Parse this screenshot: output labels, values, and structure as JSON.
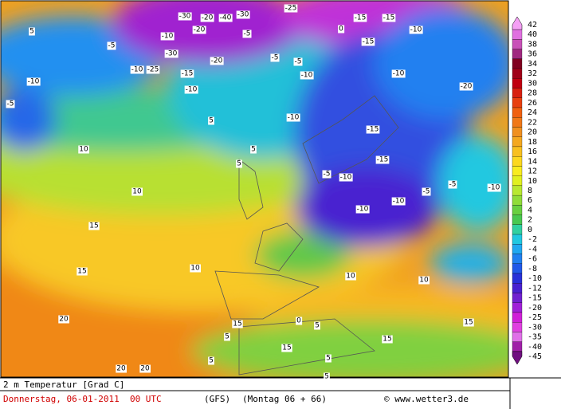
{
  "map_labels": [
    "-30",
    "-20",
    "-40",
    "-30",
    "-25",
    "-15",
    "-20",
    "-30",
    "-10",
    "-25",
    "-15",
    "-10",
    "-5",
    "-20",
    "-10",
    "-5",
    "-10",
    "-20",
    "-15",
    "-10",
    "-15",
    "-5",
    "0",
    "5",
    "-10",
    "-15",
    "-10",
    "-5",
    "-10",
    "-15",
    "-5",
    "-10",
    "-10",
    "-10",
    "-5",
    "5",
    "5",
    "10",
    "10",
    "15",
    "15",
    "15",
    "20",
    "20",
    "5",
    "10",
    "5",
    "15",
    "5",
    "0",
    "5",
    "15",
    "10",
    "5",
    "5",
    "10",
    "15",
    "-5",
    "-10",
    "-5",
    "20"
  ],
  "colorbar": {
    "levels": [
      42,
      40,
      38,
      36,
      34,
      32,
      30,
      28,
      26,
      24,
      22,
      20,
      18,
      16,
      14,
      12,
      10,
      8,
      6,
      4,
      2,
      0,
      -2,
      -4,
      -6,
      -8,
      -10,
      -12,
      -15,
      -20,
      -25,
      -30,
      -35,
      -40,
      -45
    ],
    "colors": [
      "#f4a0f4",
      "#e070e0",
      "#c850b8",
      "#a02880",
      "#800020",
      "#a00018",
      "#c00010",
      "#d82010",
      "#e84010",
      "#f06010",
      "#f07818",
      "#f09020",
      "#f4a820",
      "#f8c020",
      "#fcd820",
      "#f8ec20",
      "#e0f020",
      "#b8e830",
      "#90dc38",
      "#68d040",
      "#48c850",
      "#30d0a0",
      "#20c8e0",
      "#20a8f0",
      "#2080f0",
      "#2058e8",
      "#2830d8",
      "#4820d0",
      "#7020d0",
      "#a020d8",
      "#d020d8",
      "#e040e0",
      "#e070e8",
      "#a020a8",
      "#701080"
    ]
  },
  "footer": {
    "title": "2 m Temperatur [Grad C]",
    "date": "Donnerstag, 06-01-2011  00 UTC",
    "model": "(GFS)",
    "run": "(Montag 06 + 66)",
    "source": "© www.wetter3.de"
  }
}
